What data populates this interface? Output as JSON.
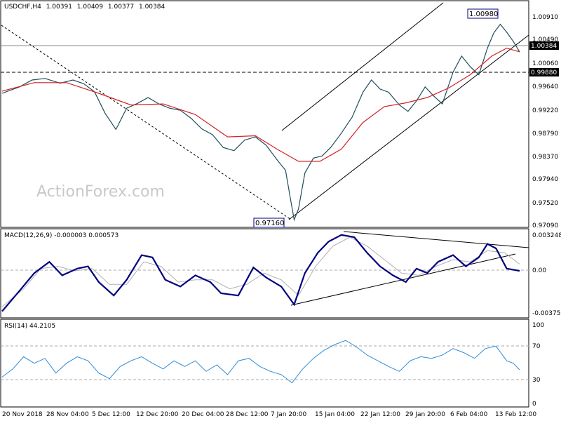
{
  "chart_data": {
    "type": "line",
    "symbol": "USDCHF,H4",
    "ohlc": [
      "1.00391",
      "1.00409",
      "1.00377",
      "1.00384"
    ],
    "watermark": "ActionForex.com",
    "colors": {
      "price": "#1f4e5a",
      "sma": "#d62020",
      "macd": "#000080",
      "signal": "#b0b0b0",
      "rsi": "#2e8bd8",
      "callout_border": "#000080"
    },
    "x_ticks": [
      "20 Nov 2018",
      "28 Nov 04:00",
      "5 Dec 12:00",
      "12 Dec 20:00",
      "20 Dec 04:00",
      "28 Dec 12:00",
      "7 Jan 20:00",
      "15 Jan 04:00",
      "22 Jan 12:00",
      "29 Jan 20:00",
      "6 Feb 04:00",
      "13 Feb 12:00"
    ],
    "price_panel": {
      "y_ticks": [
        "1.00910",
        "1.00490",
        "1.00060",
        "0.99640",
        "0.99220",
        "0.98790",
        "0.98370",
        "0.97940",
        "0.97520",
        "0.97090"
      ],
      "ylim": [
        0.9709,
        1.0133
      ],
      "current_price": "1.00384",
      "level_line": "0.99880",
      "callout_high": "1.00980",
      "callout_low": "0.97160",
      "x_len": 241,
      "close_points": [
        [
          0,
          0.996
        ],
        [
          8,
          0.9972
        ],
        [
          14,
          0.9985
        ],
        [
          20,
          0.9988
        ],
        [
          27,
          0.9979
        ],
        [
          33,
          0.9985
        ],
        [
          38,
          0.9978
        ],
        [
          43,
          0.9963
        ],
        [
          48,
          0.9922
        ],
        [
          53,
          0.9892
        ],
        [
          58,
          0.9932
        ],
        [
          63,
          0.9941
        ],
        [
          68,
          0.9952
        ],
        [
          73,
          0.994
        ],
        [
          78,
          0.9932
        ],
        [
          83,
          0.9928
        ],
        [
          88,
          0.9913
        ],
        [
          93,
          0.9893
        ],
        [
          98,
          0.9882
        ],
        [
          103,
          0.9858
        ],
        [
          108,
          0.9852
        ],
        [
          113,
          0.9872
        ],
        [
          118,
          0.9878
        ],
        [
          123,
          0.9862
        ],
        [
          128,
          0.9835
        ],
        [
          132,
          0.9815
        ],
        [
          134,
          0.9768
        ],
        [
          136,
          0.9722
        ],
        [
          138,
          0.9742
        ],
        [
          141,
          0.981
        ],
        [
          145,
          0.9838
        ],
        [
          149,
          0.9842
        ],
        [
          153,
          0.9858
        ],
        [
          158,
          0.9885
        ],
        [
          163,
          0.9915
        ],
        [
          168,
          0.9962
        ],
        [
          172,
          0.9985
        ],
        [
          176,
          0.9968
        ],
        [
          180,
          0.9962
        ],
        [
          185,
          0.9938
        ],
        [
          189,
          0.9926
        ],
        [
          193,
          0.9946
        ],
        [
          197,
          0.9972
        ],
        [
          201,
          0.9955
        ],
        [
          205,
          0.994
        ],
        [
          210,
          1.0
        ],
        [
          214,
          1.003
        ],
        [
          218,
          1.001
        ],
        [
          222,
          0.9995
        ],
        [
          226,
          1.0045
        ],
        [
          229,
          1.0074
        ],
        [
          232,
          1.009
        ],
        [
          235,
          1.0075
        ],
        [
          238,
          1.0058
        ],
        [
          241,
          1.0038
        ]
      ],
      "sma_points": [
        [
          0,
          0.9964
        ],
        [
          15,
          0.998
        ],
        [
          30,
          0.998
        ],
        [
          45,
          0.996
        ],
        [
          60,
          0.9938
        ],
        [
          75,
          0.994
        ],
        [
          90,
          0.992
        ],
        [
          105,
          0.9878
        ],
        [
          118,
          0.988
        ],
        [
          128,
          0.9855
        ],
        [
          138,
          0.9832
        ],
        [
          148,
          0.9832
        ],
        [
          158,
          0.9855
        ],
        [
          168,
          0.9905
        ],
        [
          178,
          0.9935
        ],
        [
          188,
          0.9942
        ],
        [
          198,
          0.9952
        ],
        [
          208,
          0.997
        ],
        [
          218,
          0.9995
        ],
        [
          228,
          1.003
        ],
        [
          235,
          1.0045
        ],
        [
          241,
          1.0038
        ]
      ]
    },
    "macd_panel": {
      "label": "MACD(12,26,9) -0.000003 0.000573",
      "y_ticks": [
        "0.003248",
        "0.00",
        "-0.003753"
      ],
      "ylim": [
        -0.003753,
        0.003248
      ],
      "macd_points": [
        [
          0,
          -0.0036
        ],
        [
          8,
          -0.0018
        ],
        [
          15,
          -0.0002
        ],
        [
          22,
          0.0008
        ],
        [
          28,
          -0.0004
        ],
        [
          35,
          0.0002
        ],
        [
          40,
          0.0004
        ],
        [
          45,
          -0.001
        ],
        [
          52,
          -0.0022
        ],
        [
          58,
          -0.0008
        ],
        [
          65,
          0.0014
        ],
        [
          70,
          0.0012
        ],
        [
          76,
          -0.0008
        ],
        [
          83,
          -0.0014
        ],
        [
          90,
          -0.0004
        ],
        [
          97,
          -0.001
        ],
        [
          102,
          -0.002
        ],
        [
          110,
          -0.0022
        ],
        [
          117,
          0.0003
        ],
        [
          123,
          -0.0006
        ],
        [
          130,
          -0.0014
        ],
        [
          136,
          -0.003
        ],
        [
          141,
          -0.0002
        ],
        [
          147,
          0.0016
        ],
        [
          152,
          0.0026
        ],
        [
          158,
          0.0032
        ],
        [
          164,
          0.003
        ],
        [
          170,
          0.0016
        ],
        [
          176,
          0.0004
        ],
        [
          182,
          -0.0004
        ],
        [
          188,
          -0.001
        ],
        [
          193,
          0.0002
        ],
        [
          198,
          -0.0002
        ],
        [
          203,
          0.0008
        ],
        [
          210,
          0.0014
        ],
        [
          216,
          0.0004
        ],
        [
          222,
          0.0012
        ],
        [
          226,
          0.0024
        ],
        [
          230,
          0.002
        ],
        [
          235,
          0.0002
        ],
        [
          241,
          0.0
        ]
      ],
      "signal_points": [
        [
          0,
          -0.0032
        ],
        [
          10,
          -0.0016
        ],
        [
          18,
          0.0002
        ],
        [
          26,
          0.0004
        ],
        [
          34,
          0.0
        ],
        [
          42,
          0.0002
        ],
        [
          50,
          -0.0012
        ],
        [
          58,
          -0.0012
        ],
        [
          66,
          0.0008
        ],
        [
          74,
          0.0004
        ],
        [
          82,
          -0.001
        ],
        [
          90,
          -0.0008
        ],
        [
          98,
          -0.0008
        ],
        [
          106,
          -0.0016
        ],
        [
          114,
          -0.0012
        ],
        [
          122,
          -0.0002
        ],
        [
          130,
          -0.0008
        ],
        [
          138,
          -0.0022
        ],
        [
          146,
          0.0004
        ],
        [
          154,
          0.0022
        ],
        [
          162,
          0.003
        ],
        [
          170,
          0.0022
        ],
        [
          178,
          0.001
        ],
        [
          186,
          -0.0002
        ],
        [
          194,
          -0.0004
        ],
        [
          202,
          0.0004
        ],
        [
          210,
          0.001
        ],
        [
          218,
          0.0008
        ],
        [
          226,
          0.0018
        ],
        [
          234,
          0.0016
        ],
        [
          241,
          0.0006
        ]
      ]
    },
    "rsi_panel": {
      "label": "RSI(14) 44.2105",
      "y_ticks": [
        "100",
        "70",
        "30",
        "0"
      ],
      "ylim": [
        0,
        100
      ],
      "rsi_points": [
        [
          0,
          35
        ],
        [
          5,
          45
        ],
        [
          10,
          60
        ],
        [
          15,
          52
        ],
        [
          20,
          58
        ],
        [
          25,
          40
        ],
        [
          30,
          52
        ],
        [
          35,
          60
        ],
        [
          40,
          55
        ],
        [
          45,
          40
        ],
        [
          50,
          33
        ],
        [
          55,
          48
        ],
        [
          60,
          55
        ],
        [
          65,
          60
        ],
        [
          70,
          52
        ],
        [
          75,
          45
        ],
        [
          80,
          55
        ],
        [
          85,
          48
        ],
        [
          90,
          55
        ],
        [
          95,
          42
        ],
        [
          100,
          50
        ],
        [
          105,
          38
        ],
        [
          110,
          55
        ],
        [
          115,
          58
        ],
        [
          120,
          48
        ],
        [
          125,
          42
        ],
        [
          130,
          38
        ],
        [
          135,
          28
        ],
        [
          140,
          45
        ],
        [
          145,
          58
        ],
        [
          150,
          68
        ],
        [
          155,
          75
        ],
        [
          160,
          80
        ],
        [
          165,
          72
        ],
        [
          170,
          62
        ],
        [
          175,
          55
        ],
        [
          180,
          48
        ],
        [
          185,
          42
        ],
        [
          190,
          55
        ],
        [
          195,
          60
        ],
        [
          200,
          58
        ],
        [
          205,
          62
        ],
        [
          210,
          70
        ],
        [
          215,
          65
        ],
        [
          220,
          58
        ],
        [
          225,
          70
        ],
        [
          230,
          73
        ],
        [
          235,
          55
        ],
        [
          238,
          52
        ],
        [
          241,
          44
        ]
      ]
    }
  }
}
